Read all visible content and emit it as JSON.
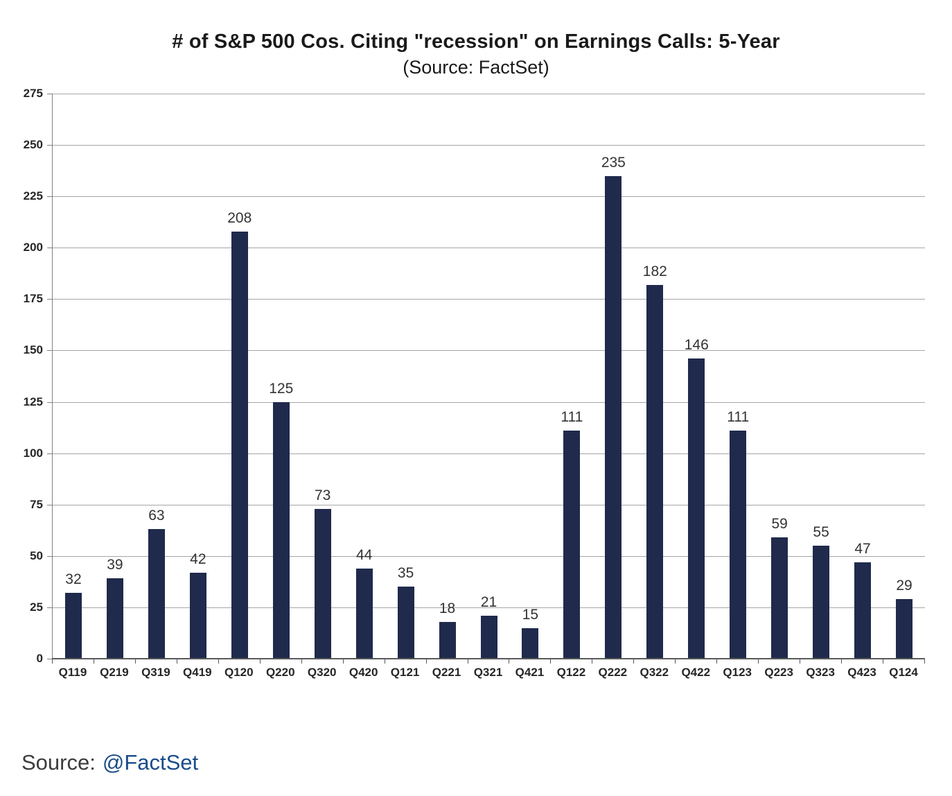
{
  "chart_data": {
    "type": "bar",
    "title": "# of S&P 500 Cos. Citing \"recession\" on Earnings Calls: 5-Year",
    "subtitle": "(Source: FactSet)",
    "categories": [
      "Q119",
      "Q219",
      "Q319",
      "Q419",
      "Q120",
      "Q220",
      "Q320",
      "Q420",
      "Q121",
      "Q221",
      "Q321",
      "Q421",
      "Q122",
      "Q222",
      "Q322",
      "Q422",
      "Q123",
      "Q223",
      "Q323",
      "Q423",
      "Q124"
    ],
    "values": [
      32,
      39,
      63,
      42,
      208,
      125,
      73,
      44,
      35,
      18,
      21,
      15,
      111,
      235,
      182,
      146,
      111,
      59,
      55,
      47,
      29
    ],
    "ylim": [
      0,
      275
    ],
    "yticks": [
      0,
      25,
      50,
      75,
      100,
      125,
      150,
      175,
      200,
      225,
      250,
      275
    ],
    "ytick_labels": [
      "0",
      "25",
      "50",
      "75",
      "100",
      "125",
      "150",
      "175",
      "200",
      "225",
      "250",
      "275"
    ],
    "xlabel": "",
    "ylabel": "",
    "grid": "horizontal",
    "legend": "none",
    "data_labels": true,
    "bar_color": "#1f2a4c",
    "gridline_color": "#a6a6a6",
    "axis_line_color": "#595959"
  },
  "footer": {
    "source_label": "Source:",
    "source_link": "@FactSet"
  }
}
